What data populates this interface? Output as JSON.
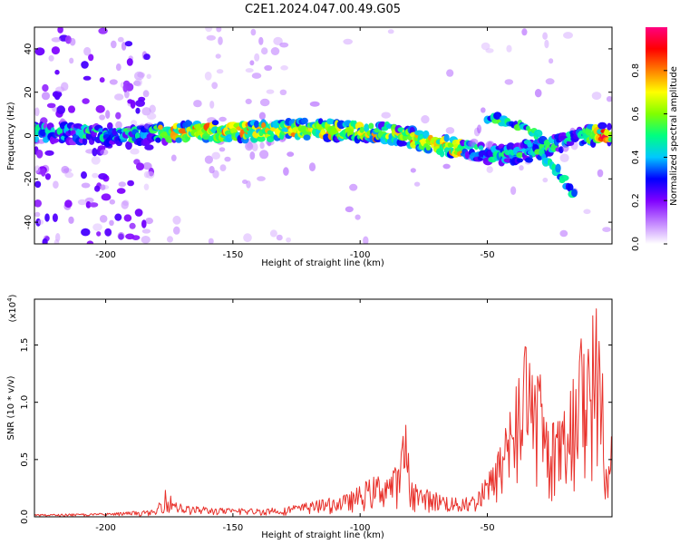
{
  "title": "C2E1.2024.047.00.49.G05",
  "spectrogram": {
    "xlabel": "Height of straight line (km)",
    "ylabel": "Frequency (Hz)",
    "xlim": [
      -228,
      -1
    ],
    "ylim": [
      -50,
      50
    ],
    "xticks": [
      -200,
      -150,
      -100,
      -50
    ],
    "xtick_labels": [
      "-200",
      "-150",
      "-100",
      "-50"
    ],
    "yticks": [
      40,
      20,
      0,
      -20,
      -40
    ],
    "ytick_labels": [
      "40",
      "20",
      "0",
      "-20",
      "-40"
    ],
    "colorbar": {
      "label": "Normalized spectral amplitude",
      "range": [
        0,
        1
      ],
      "ticks": [
        0.0,
        0.2,
        0.4,
        0.6,
        0.8
      ],
      "tick_labels": [
        "0.0",
        "0.2",
        "0.4",
        "0.6",
        "0.8"
      ],
      "colormap": [
        "#ffffff",
        "#c080ff",
        "#8000ff",
        "#0000ff",
        "#00c8ff",
        "#00ff80",
        "#80ff00",
        "#ffff00",
        "#ff8000",
        "#ff0000",
        "#ff0080"
      ]
    }
  },
  "snr": {
    "xlabel": "Height of straight line (km)",
    "ylabel": "SNR (10 * v/v)",
    "scale_label": "(x10",
    "scale_exp": "4",
    "scale_close": ")",
    "xlim": [
      -228,
      -1
    ],
    "ylim": [
      0,
      1.9
    ],
    "xticks": [
      -200,
      -150,
      -100,
      -50
    ],
    "xtick_labels": [
      "-200",
      "-150",
      "-100",
      "-50"
    ],
    "yticks": [
      0.0,
      0.5,
      1.0,
      1.5
    ],
    "ytick_labels": [
      "0.0",
      "0.5",
      "1.0",
      "1.5"
    ],
    "line_color": "#e8302a"
  },
  "chart_data": [
    {
      "type": "heatmap",
      "title": "C2E1.2024.047.00.49.G05",
      "xlabel": "Height of straight line (km)",
      "ylabel": "Frequency (Hz)",
      "xlim": [
        -228,
        -1
      ],
      "ylim": [
        -50,
        50
      ],
      "ridge": {
        "x": [
          -228,
          -210,
          -190,
          -180,
          -160,
          -140,
          -120,
          -100,
          -90,
          -80,
          -70,
          -60,
          -50,
          -45,
          -35,
          -30,
          -25,
          -20,
          -15,
          -10,
          -5,
          -1
        ],
        "y": [
          1,
          1,
          0,
          1,
          2,
          2,
          3,
          2,
          1,
          -1,
          -4,
          -6,
          -8,
          -9,
          -8,
          -6,
          -4,
          -3,
          -1,
          0,
          1,
          0
        ]
      },
      "branch_upper": {
        "x": [
          -50,
          -45,
          -40,
          -35,
          -30
        ],
        "y": [
          8,
          7,
          5,
          3,
          1
        ]
      },
      "branch_lower": {
        "x": [
          -35,
          -30,
          -25,
          -20,
          -15
        ],
        "y": [
          -4,
          -8,
          -12,
          -20,
          -28
        ]
      },
      "colorbar_range": [
        0,
        1
      ]
    },
    {
      "type": "line",
      "xlabel": "Height of straight line (km)",
      "ylabel": "SNR (10 * v/v)",
      "xlim": [
        -228,
        -1
      ],
      "ylim": [
        0,
        1.9
      ],
      "envelope": {
        "x": [
          -228,
          -200,
          -180,
          -177,
          -170,
          -150,
          -130,
          -115,
          -105,
          -95,
          -90,
          -85,
          -82,
          -80,
          -75,
          -70,
          -60,
          -55,
          -50,
          -45,
          -40,
          -35,
          -32,
          -30,
          -28,
          -25,
          -20,
          -15,
          -12,
          -7,
          -5,
          -3,
          -1
        ],
        "y": [
          0.02,
          0.03,
          0.06,
          0.24,
          0.1,
          0.07,
          0.08,
          0.15,
          0.2,
          0.35,
          0.4,
          0.45,
          0.85,
          0.3,
          0.25,
          0.22,
          0.15,
          0.2,
          0.35,
          0.6,
          1.0,
          1.5,
          1.2,
          1.4,
          1.0,
          0.8,
          0.9,
          1.3,
          1.7,
          1.9,
          1.4,
          0.4,
          0.85
        ]
      }
    }
  ]
}
